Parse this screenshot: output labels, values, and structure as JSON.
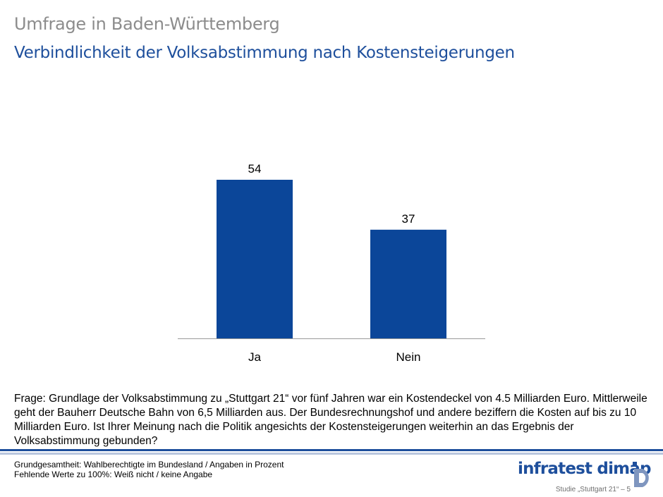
{
  "header": {
    "title": "Umfrage in Baden-Württemberg",
    "subtitle": "Verbindlichkeit der Volksabstimmung nach Kostensteigerungen"
  },
  "colors": {
    "bar": "#0b4699",
    "axis": "#9a9a9a",
    "title": "#8c8c8c",
    "accent": "#1e4f9c"
  },
  "chart_data": {
    "type": "bar",
    "title": "Verbindlichkeit der Volksabstimmung nach Kostensteigerungen",
    "categories": [
      "Ja",
      "Nein"
    ],
    "values": [
      54,
      37
    ],
    "xlabel": "",
    "ylabel": "",
    "ylim": [
      0,
      60
    ],
    "grid": false,
    "data_labels": [
      "54",
      "37"
    ]
  },
  "question": {
    "text": "Frage: Grundlage der Volksabstimmung zu „Stuttgart 21“ vor fünf Jahren war ein Kostendeckel von 4.5 Milliarden Euro. Mittlerweile geht der Bauherr Deutsche Bahn von 6,5 Milliarden aus. Der Bundesrechnungshof und andere beziffern die Kosten auf bis zu 10 Milliarden Euro. Ist Ihrer Meinung nach die Politik angesichts der Kostensteigerungen weiterhin an das Ergebnis der Volksabstimmung gebunden?"
  },
  "footer": {
    "basis": "Grundgesamtheit: Wahlberechtigte im Bundesland / Angaben in Prozent",
    "missing": "Fehlende Werte zu 100%: Weiß nicht / keine Angabe",
    "brand": "infratest dimap",
    "page_ref": "Studie „Stuttgart 21“ – 5",
    "logo_icon": "infratest-dimap-logo-icon"
  }
}
